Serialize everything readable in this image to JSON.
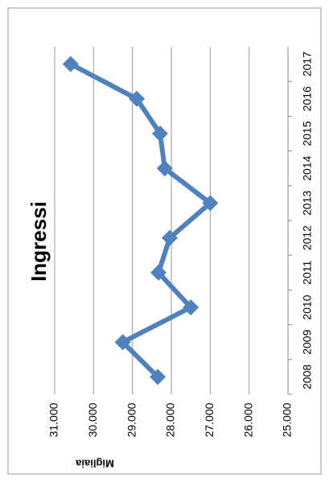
{
  "chart_data": {
    "type": "line",
    "title": "Ingressi",
    "y_label": "Migliaia",
    "categories": [
      "2008",
      "2009",
      "2010",
      "2011",
      "2012",
      "2013",
      "2014",
      "2015",
      "2016",
      "2017"
    ],
    "series": [
      {
        "name": "Ingressi",
        "color": "#4f81bd",
        "values": [
          28350,
          29250,
          27500,
          28330,
          28040,
          27000,
          28170,
          28290,
          28890,
          30590
        ]
      }
    ],
    "ylim": [
      25000,
      31000
    ],
    "yticks": [
      {
        "value": 25000,
        "label": "25.000"
      },
      {
        "value": 26000,
        "label": "26.000"
      },
      {
        "value": 27000,
        "label": "27.000"
      },
      {
        "value": 28000,
        "label": "28.000"
      },
      {
        "value": 29000,
        "label": "29.000"
      },
      {
        "value": 30000,
        "label": "30.000"
      },
      {
        "value": 31000,
        "label": "31.000"
      }
    ],
    "grid": true
  }
}
